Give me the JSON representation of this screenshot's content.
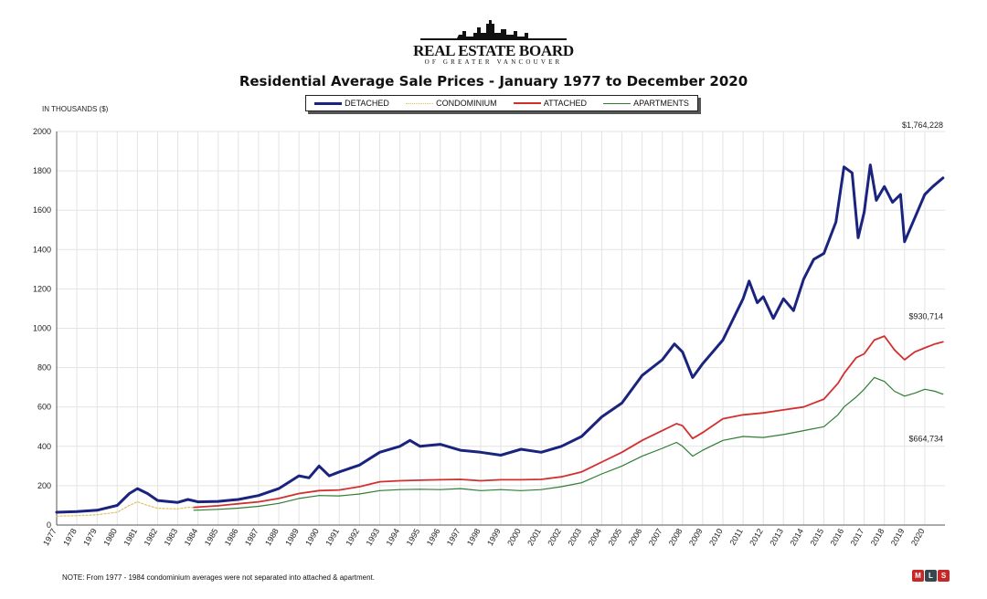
{
  "header": {
    "logo_title": "REAL ESTATE BOARD",
    "logo_subtitle": "OF GREATER VANCOUVER"
  },
  "footer": {
    "note": "NOTE:  From 1977 - 1984 condominium averages were not separated into attached & apartment."
  },
  "chart_data": {
    "type": "line",
    "title": "Residential Average Sale Prices  -  January 1977 to December 2020",
    "ylabel": "IN THOUSANDS ($)",
    "xlabel": "",
    "ylim": [
      0,
      2000
    ],
    "xlim": [
      1977,
      2021
    ],
    "yticks": [
      0,
      200,
      400,
      600,
      800,
      1000,
      1200,
      1400,
      1600,
      1800,
      2000
    ],
    "xticks": [
      1977,
      1978,
      1979,
      1980,
      1981,
      1982,
      1983,
      1984,
      1985,
      1986,
      1987,
      1988,
      1989,
      1990,
      1991,
      1992,
      1993,
      1994,
      1995,
      1996,
      1997,
      1998,
      1999,
      2000,
      2001,
      2002,
      2003,
      2004,
      2005,
      2006,
      2007,
      2008,
      2009,
      2010,
      2011,
      2012,
      2013,
      2014,
      2015,
      2016,
      2017,
      2018,
      2019,
      2020
    ],
    "grid": true,
    "legend_position": "top",
    "series": [
      {
        "name": "DETACHED",
        "color": "#1a237e",
        "style": "solid",
        "width": 3,
        "points": [
          [
            1977,
            65
          ],
          [
            1978,
            68
          ],
          [
            1979,
            75
          ],
          [
            1980,
            100
          ],
          [
            1980.6,
            160
          ],
          [
            1981,
            185
          ],
          [
            1981.5,
            160
          ],
          [
            1982,
            125
          ],
          [
            1983,
            115
          ],
          [
            1983.5,
            130
          ],
          [
            1984,
            118
          ],
          [
            1985,
            120
          ],
          [
            1986,
            130
          ],
          [
            1987,
            150
          ],
          [
            1988,
            185
          ],
          [
            1989,
            250
          ],
          [
            1989.5,
            240
          ],
          [
            1990,
            300
          ],
          [
            1990.5,
            250
          ],
          [
            1991,
            270
          ],
          [
            1992,
            305
          ],
          [
            1993,
            370
          ],
          [
            1994,
            400
          ],
          [
            1994.5,
            430
          ],
          [
            1995,
            400
          ],
          [
            1996,
            410
          ],
          [
            1997,
            380
          ],
          [
            1998,
            370
          ],
          [
            1999,
            355
          ],
          [
            2000,
            385
          ],
          [
            2001,
            370
          ],
          [
            2002,
            400
          ],
          [
            2003,
            450
          ],
          [
            2004,
            550
          ],
          [
            2005,
            620
          ],
          [
            2006,
            760
          ],
          [
            2007,
            840
          ],
          [
            2007.6,
            920
          ],
          [
            2008,
            880
          ],
          [
            2008.5,
            750
          ],
          [
            2009,
            820
          ],
          [
            2010,
            940
          ],
          [
            2011,
            1150
          ],
          [
            2011.3,
            1240
          ],
          [
            2011.7,
            1130
          ],
          [
            2012,
            1160
          ],
          [
            2012.5,
            1050
          ],
          [
            2013,
            1150
          ],
          [
            2013.5,
            1090
          ],
          [
            2014,
            1250
          ],
          [
            2014.5,
            1350
          ],
          [
            2015,
            1380
          ],
          [
            2015.6,
            1540
          ],
          [
            2016,
            1820
          ],
          [
            2016.4,
            1790
          ],
          [
            2016.7,
            1460
          ],
          [
            2017,
            1590
          ],
          [
            2017.3,
            1830
          ],
          [
            2017.6,
            1650
          ],
          [
            2018,
            1720
          ],
          [
            2018.4,
            1640
          ],
          [
            2018.8,
            1680
          ],
          [
            2019,
            1440
          ],
          [
            2019.5,
            1560
          ],
          [
            2020,
            1680
          ],
          [
            2020.4,
            1720
          ],
          [
            2020.9,
            1764
          ]
        ]
      },
      {
        "name": "CONDOMINIUM",
        "color": "#e0c060",
        "style": "dotted",
        "width": 1.2,
        "points": [
          [
            1977,
            45
          ],
          [
            1978,
            48
          ],
          [
            1979,
            52
          ],
          [
            1980,
            65
          ],
          [
            1980.6,
            100
          ],
          [
            1981,
            118
          ],
          [
            1981.5,
            100
          ],
          [
            1982,
            85
          ],
          [
            1983,
            82
          ],
          [
            1983.5,
            90
          ],
          [
            1984,
            88
          ]
        ]
      },
      {
        "name": "ATTACHED",
        "color": "#d32f2f",
        "style": "solid",
        "width": 1.8,
        "points": [
          [
            1983.8,
            90
          ],
          [
            1985,
            98
          ],
          [
            1986,
            108
          ],
          [
            1987,
            118
          ],
          [
            1988,
            135
          ],
          [
            1989,
            160
          ],
          [
            1990,
            175
          ],
          [
            1991,
            178
          ],
          [
            1992,
            195
          ],
          [
            1993,
            220
          ],
          [
            1994,
            225
          ],
          [
            1995,
            228
          ],
          [
            1996,
            230
          ],
          [
            1997,
            232
          ],
          [
            1998,
            225
          ],
          [
            1999,
            230
          ],
          [
            2000,
            230
          ],
          [
            2001,
            232
          ],
          [
            2002,
            245
          ],
          [
            2003,
            270
          ],
          [
            2004,
            320
          ],
          [
            2005,
            370
          ],
          [
            2006,
            430
          ],
          [
            2007,
            480
          ],
          [
            2007.7,
            515
          ],
          [
            2008,
            505
          ],
          [
            2008.5,
            440
          ],
          [
            2009,
            470
          ],
          [
            2010,
            540
          ],
          [
            2011,
            560
          ],
          [
            2012,
            570
          ],
          [
            2013,
            585
          ],
          [
            2014,
            600
          ],
          [
            2015,
            640
          ],
          [
            2015.7,
            720
          ],
          [
            2016,
            770
          ],
          [
            2016.6,
            850
          ],
          [
            2017,
            870
          ],
          [
            2017.5,
            940
          ],
          [
            2018,
            960
          ],
          [
            2018.5,
            890
          ],
          [
            2019,
            840
          ],
          [
            2019.5,
            880
          ],
          [
            2020,
            900
          ],
          [
            2020.5,
            920
          ],
          [
            2020.9,
            931
          ]
        ]
      },
      {
        "name": "APARTMENTS",
        "color": "#2e7d32",
        "style": "solid",
        "width": 1.2,
        "points": [
          [
            1983.8,
            75
          ],
          [
            1985,
            80
          ],
          [
            1986,
            86
          ],
          [
            1987,
            95
          ],
          [
            1988,
            110
          ],
          [
            1989,
            135
          ],
          [
            1990,
            150
          ],
          [
            1991,
            148
          ],
          [
            1992,
            158
          ],
          [
            1993,
            175
          ],
          [
            1994,
            180
          ],
          [
            1995,
            182
          ],
          [
            1996,
            180
          ],
          [
            1997,
            185
          ],
          [
            1998,
            175
          ],
          [
            1999,
            180
          ],
          [
            2000,
            175
          ],
          [
            2001,
            180
          ],
          [
            2002,
            195
          ],
          [
            2003,
            215
          ],
          [
            2004,
            260
          ],
          [
            2005,
            300
          ],
          [
            2006,
            350
          ],
          [
            2007,
            390
          ],
          [
            2007.7,
            420
          ],
          [
            2008,
            400
          ],
          [
            2008.5,
            350
          ],
          [
            2009,
            380
          ],
          [
            2010,
            430
          ],
          [
            2011,
            450
          ],
          [
            2012,
            445
          ],
          [
            2013,
            460
          ],
          [
            2014,
            480
          ],
          [
            2015,
            500
          ],
          [
            2015.7,
            560
          ],
          [
            2016,
            600
          ],
          [
            2016.6,
            650
          ],
          [
            2017,
            690
          ],
          [
            2017.5,
            750
          ],
          [
            2018,
            730
          ],
          [
            2018.5,
            680
          ],
          [
            2019,
            655
          ],
          [
            2019.5,
            670
          ],
          [
            2020,
            690
          ],
          [
            2020.5,
            680
          ],
          [
            2020.9,
            665
          ]
        ]
      }
    ],
    "annotations": [
      {
        "text": "$1,764,228",
        "x": 2020.9,
        "y": 1764
      },
      {
        "text": "$930,714",
        "x": 2020.9,
        "y": 931
      },
      {
        "text": "$664,734",
        "x": 2020.9,
        "y": 665
      }
    ]
  }
}
